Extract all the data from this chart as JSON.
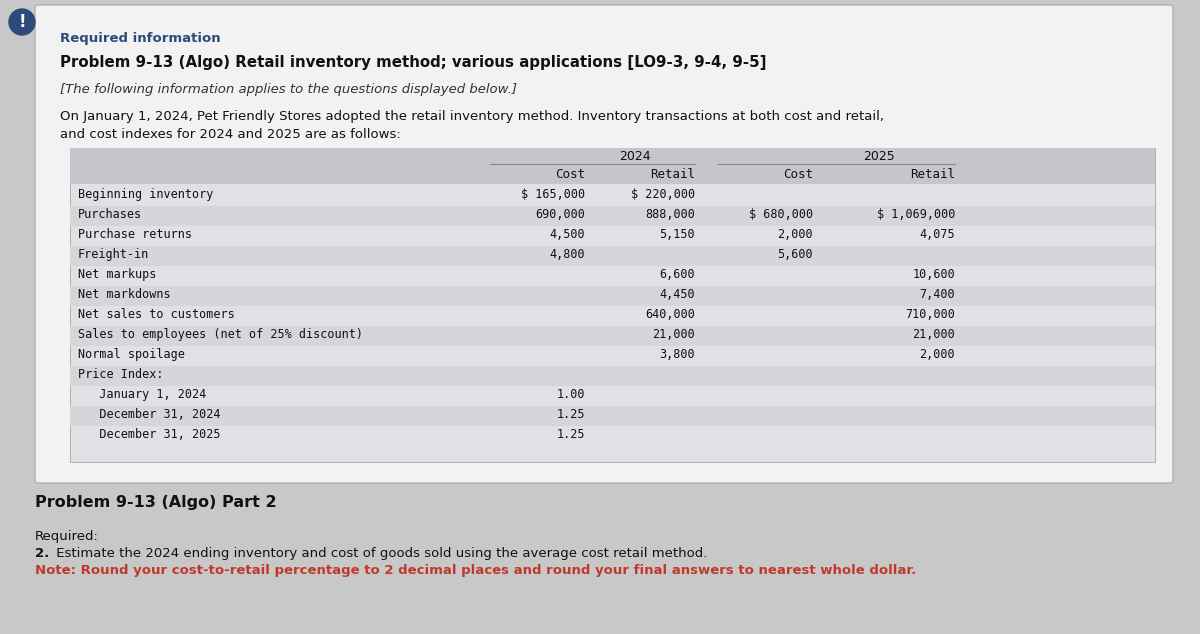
{
  "bg_color": "#c8c8c8",
  "card_color": "#f2f2f2",
  "card_border": "#b0b0b0",
  "required_info_color": "#2c4a7c",
  "title_color": "#111111",
  "italic_color": "#333333",
  "body_color": "#111111",
  "table_bg_header": "#c5c5cb",
  "table_bg_data": "#e0e0e5",
  "table_border": "#999999",
  "note_color": "#c0392b",
  "exclamation_color": "#2c4a7c",
  "part2_section_color": "#c8c8c8",
  "required_info_text": "Required information",
  "title_text": "Problem 9-13 (Algo) Retail inventory method; various applications [LO9-3, 9-4, 9-5]",
  "italic_text": "[The following information applies to the questions displayed below.]",
  "intro_text_line1": "On January 1, 2024, Pet Friendly Stores adopted the retail inventory method. Inventory transactions at both cost and retail,",
  "intro_text_line2": "and cost indexes for 2024 and 2025 are as follows:",
  "col_headers_year": [
    "2024",
    "2025"
  ],
  "col_headers_sub": [
    "Cost",
    "Retail",
    "Cost",
    "Retail"
  ],
  "row_labels": [
    "Beginning inventory",
    "Purchases",
    "Purchase returns",
    "Freight-in",
    "Net markups",
    "Net markdowns",
    "Net sales to customers",
    "Sales to employees (net of 25% discount)",
    "Normal spoilage",
    "Price Index:",
    "   January 1, 2024",
    "   December 31, 2024",
    "   December 31, 2025"
  ],
  "col_c2024": [
    "$ 165,000",
    "690,000",
    "4,500",
    "4,800",
    "",
    "",
    "",
    "",
    "",
    "",
    "1.00",
    "1.25",
    "1.25"
  ],
  "col_r2024": [
    "$ 220,000",
    "888,000",
    "5,150",
    "",
    "6,600",
    "4,450",
    "640,000",
    "21,000",
    "3,800",
    "",
    "",
    "",
    ""
  ],
  "col_c2025": [
    "",
    "$ 680,000",
    "2,000",
    "5,600",
    "",
    "",
    "",
    "",
    "",
    "",
    "",
    "",
    ""
  ],
  "col_r2025": [
    "",
    "$ 1,069,000",
    "4,075",
    "",
    "10,600",
    "7,400",
    "710,000",
    "21,000",
    "2,000",
    "",
    "",
    "",
    ""
  ],
  "part2_title": "Problem 9-13 (Algo) Part 2",
  "required_label": "Required:",
  "required_num": "2.",
  "required_body": " Estimate the 2024 ending inventory and cost of goods sold using the average cost retail method.",
  "note_text": "Note: Round your cost-to-retail percentage to 2 decimal places and round your final answers to nearest whole dollar."
}
